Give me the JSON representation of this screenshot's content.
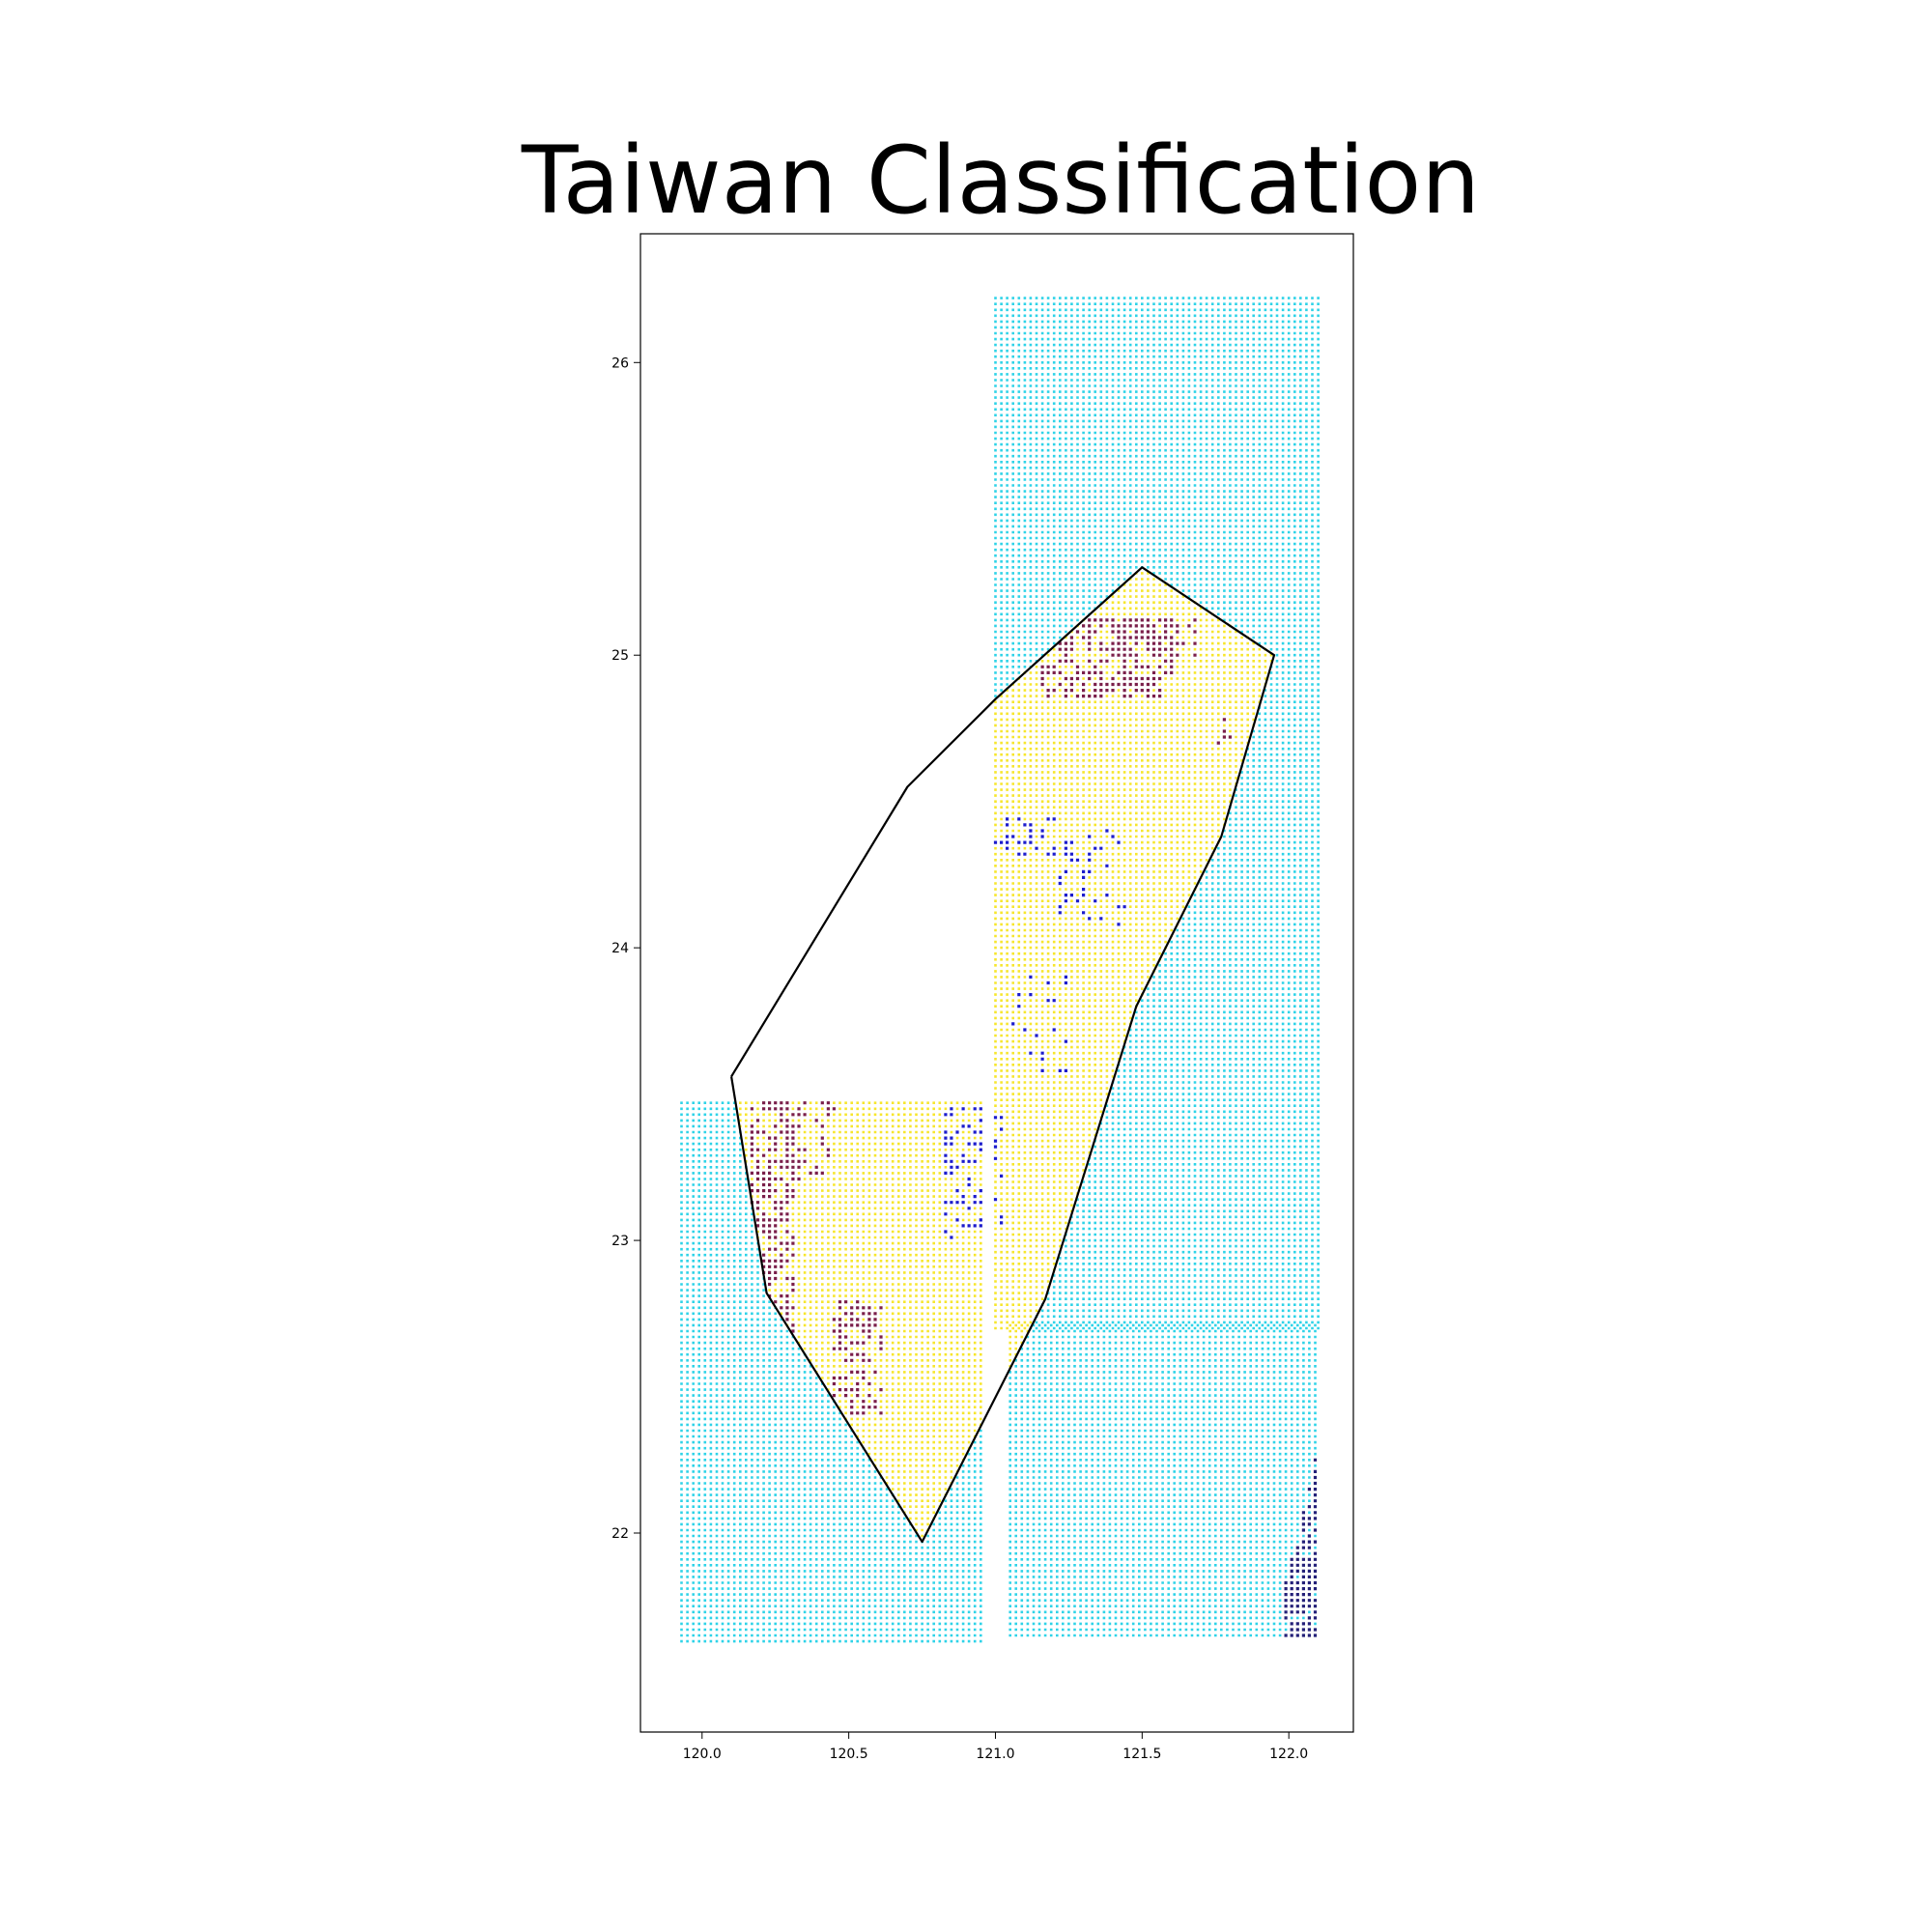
{
  "chart_data": {
    "type": "scatter",
    "title": "Taiwan Classification",
    "xlabel": "",
    "ylabel": "",
    "xlim": [
      119.79,
      122.22
    ],
    "ylim": [
      21.32,
      26.44
    ],
    "x_ticks": [
      "120.0",
      "120.5",
      "121.0",
      "121.5",
      "122.0"
    ],
    "y_ticks": [
      "22",
      "23",
      "24",
      "25",
      "26"
    ],
    "grid": false,
    "legend": "none",
    "colors": {
      "sea": "#2ed3e8",
      "land": "#f7e62c",
      "urban": "#7a1f4a",
      "mountain": "#1c1ccc",
      "dark": "#232078",
      "boundary": "#000000"
    },
    "boundary_polygon": [
      [
        120.1,
        23.56
      ],
      [
        120.22,
        22.82
      ],
      [
        120.75,
        21.97
      ],
      [
        121.17,
        22.8
      ],
      [
        121.48,
        23.8
      ],
      [
        121.77,
        24.38
      ],
      [
        121.95,
        25.0
      ],
      [
        121.5,
        25.3
      ],
      [
        121.0,
        24.85
      ],
      [
        120.7,
        24.55
      ],
      [
        120.1,
        23.56
      ]
    ],
    "grid_regions": [
      {
        "class": "sea",
        "x": [
          121.0,
          122.1
        ],
        "y": [
          22.7,
          26.22
        ],
        "step": 0.02
      },
      {
        "class": "sea",
        "x": [
          121.05,
          122.1
        ],
        "y": [
          21.65,
          22.72
        ],
        "step": 0.02
      },
      {
        "class": "sea",
        "x": [
          119.93,
          120.96
        ],
        "y": [
          21.63,
          23.48
        ],
        "step": 0.02
      }
    ],
    "class_clusters": [
      {
        "class": "urban",
        "x": [
          120.15,
          120.32
        ],
        "y": [
          22.55,
          23.48
        ],
        "density": 0.55
      },
      {
        "class": "urban",
        "x": [
          120.28,
          120.45
        ],
        "y": [
          23.2,
          23.48
        ],
        "density": 0.35
      },
      {
        "class": "urban",
        "x": [
          120.43,
          120.62
        ],
        "y": [
          22.4,
          22.8
        ],
        "density": 0.4
      },
      {
        "class": "urban",
        "x": [
          121.15,
          121.6
        ],
        "y": [
          24.85,
          25.12
        ],
        "density": 0.55
      },
      {
        "class": "urban",
        "x": [
          121.38,
          121.7
        ],
        "y": [
          24.98,
          25.12
        ],
        "density": 0.3
      },
      {
        "class": "urban",
        "x": [
          121.75,
          121.8
        ],
        "y": [
          24.68,
          24.78
        ],
        "density": 0.4
      },
      {
        "class": "mountain",
        "x": [
          120.82,
          121.02
        ],
        "y": [
          23.0,
          23.45
        ],
        "density": 0.3
      },
      {
        "class": "mountain",
        "x": [
          121.0,
          121.2
        ],
        "y": [
          24.3,
          24.45
        ],
        "density": 0.35
      },
      {
        "class": "mountain",
        "x": [
          121.2,
          121.45
        ],
        "y": [
          24.05,
          24.4
        ],
        "density": 0.2
      },
      {
        "class": "mountain",
        "x": [
          121.05,
          121.25
        ],
        "y": [
          23.55,
          23.9
        ],
        "density": 0.15
      },
      {
        "class": "dark",
        "x": [
          121.97,
          122.12
        ],
        "y": [
          21.65,
          22.28
        ],
        "density": 0.8
      }
    ]
  }
}
